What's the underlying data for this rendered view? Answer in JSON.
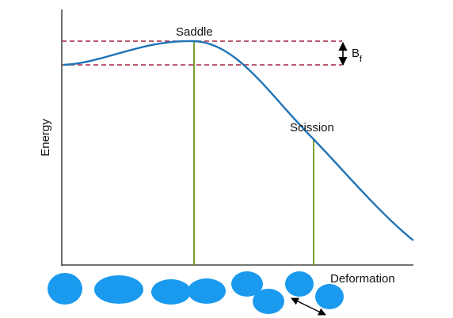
{
  "axes": {
    "y_label": "Energy",
    "x_label": "Deformation"
  },
  "annotations": {
    "saddle": "Saddle",
    "scission": "Scission",
    "barrier": "B",
    "barrier_subscript": "f"
  }
}
